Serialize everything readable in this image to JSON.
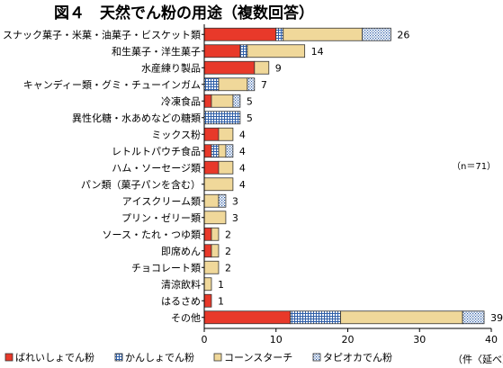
{
  "chart_data": {
    "type": "bar",
    "orientation": "horizontal",
    "stacked": true,
    "title": "図４　天然でん粉の用途（複数回答）",
    "note": "（n＝71）",
    "xunit": "（件〈延べ〉）",
    "xlim": [
      0,
      40
    ],
    "xticks": [
      "0",
      "10",
      "20",
      "30",
      "40"
    ],
    "categories": [
      "スナック菓子・米菓・油菓子・ビスケット類",
      "和生菓子・洋生菓子",
      "水産練り製品",
      "キャンディー類・グミ・チューインガム",
      "冷凍食品",
      "異性化糖・水あめなどの糖類",
      "ミックス粉",
      "レトルトパウチ食品",
      "ハム・ソーセージ類",
      "パン類（菓子パンを含む）",
      "アイスクリーム類",
      "プリン・ゼリー類",
      "ソース・たれ・つゆ類",
      "即席めん",
      "チョコレート類",
      "清涼飲料",
      "はるさめ",
      "その他"
    ],
    "totals": [
      "26",
      "14",
      "9",
      "7",
      "5",
      "5",
      "4",
      "4",
      "4",
      "4",
      "3",
      "3",
      "2",
      "2",
      "2",
      "1",
      "1",
      "39"
    ],
    "series": [
      {
        "name": "ばれいしょでん粉",
        "values": [
          10,
          5,
          7,
          0,
          1,
          0,
          2,
          1,
          2,
          0,
          0,
          0,
          1,
          1,
          0,
          0,
          1,
          12
        ]
      },
      {
        "name": "かんしょでん粉",
        "values": [
          1,
          1,
          0,
          2,
          0,
          5,
          0,
          1,
          0,
          0,
          0,
          0,
          0,
          0,
          0,
          0,
          0,
          7
        ]
      },
      {
        "name": "コーンスターチ",
        "values": [
          11,
          8,
          2,
          4,
          3,
          0,
          2,
          1,
          2,
          4,
          2,
          3,
          1,
          1,
          2,
          1,
          0,
          17
        ]
      },
      {
        "name": "タピオカでん粉",
        "values": [
          4,
          0,
          0,
          1,
          1,
          0,
          0,
          1,
          0,
          0,
          1,
          0,
          0,
          0,
          0,
          0,
          0,
          3
        ]
      }
    ],
    "colors": [
      "#e8392a",
      "#2f5fa8",
      "#f0d89a",
      "#2f5fa8"
    ],
    "grid": false,
    "legend_position": "bottom"
  }
}
